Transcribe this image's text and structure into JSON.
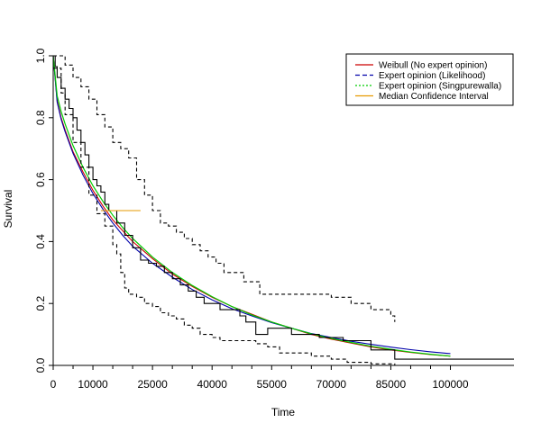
{
  "chart_data": {
    "type": "line",
    "title": "",
    "xlabel": "Time",
    "ylabel": "Survival",
    "xlim": [
      0,
      116000
    ],
    "ylim": [
      0,
      1.0
    ],
    "x_ticks": [
      0,
      10000,
      25000,
      40000,
      55000,
      70000,
      85000,
      100000
    ],
    "x_tick_labels": [
      "0",
      "10000",
      "25000",
      "40000",
      "55000",
      "70000",
      "85000",
      "100000"
    ],
    "x_minor_ticks": [
      5000,
      15000,
      20000,
      30000,
      35000,
      45000,
      50000,
      60000,
      65000,
      75000,
      80000,
      90000,
      95000
    ],
    "y_ticks": [
      0.0,
      0.2,
      0.4,
      0.6,
      0.8,
      1.0
    ],
    "y_tick_labels": [
      "0.0",
      "0.2",
      "0.4",
      "0.6",
      "0.8",
      "1.0"
    ],
    "grid": false,
    "legend_position": "top-right",
    "legend": [
      {
        "label": "Weibull (No expert opinion)",
        "color": "#CC0000",
        "dash": "solid"
      },
      {
        "label": "Expert opinion (Likelihood)",
        "color": "#0000AA",
        "dash": "dashed"
      },
      {
        "label": "Expert opinion (Singpurewalla)",
        "color": "#00CC00",
        "dash": "dotted"
      },
      {
        "label": "Median Confidence Interval",
        "color": "#E69A00",
        "dash": "solid"
      }
    ],
    "series": [
      {
        "name": "Weibull (No expert opinion)",
        "color": "#CC0000",
        "x": [
          0,
          1000,
          2000,
          3000,
          5000,
          7500,
          10000,
          12500,
          15000,
          17500,
          20000,
          25000,
          30000,
          35000,
          40000,
          45000,
          50000,
          55000,
          60000,
          65000,
          70000,
          75000,
          80000,
          85000,
          90000,
          95000,
          100000
        ],
        "y": [
          1.0,
          0.855,
          0.8,
          0.76,
          0.69,
          0.625,
          0.565,
          0.515,
          0.47,
          0.435,
          0.4,
          0.345,
          0.295,
          0.255,
          0.22,
          0.19,
          0.165,
          0.14,
          0.12,
          0.1,
          0.085,
          0.072,
          0.06,
          0.05,
          0.042,
          0.035,
          0.03
        ]
      },
      {
        "name": "Expert opinion (Likelihood)",
        "color": "#0000AA",
        "x": [
          0,
          1000,
          2000,
          3000,
          5000,
          7500,
          10000,
          12500,
          15000,
          17500,
          20000,
          25000,
          30000,
          35000,
          40000,
          45000,
          50000,
          55000,
          60000,
          65000,
          70000,
          75000,
          80000,
          85000,
          90000,
          95000,
          100000
        ],
        "y": [
          1.0,
          0.85,
          0.795,
          0.755,
          0.685,
          0.615,
          0.555,
          0.505,
          0.46,
          0.42,
          0.385,
          0.33,
          0.285,
          0.245,
          0.212,
          0.183,
          0.16,
          0.138,
          0.12,
          0.103,
          0.09,
          0.078,
          0.068,
          0.059,
          0.051,
          0.044,
          0.038
        ]
      },
      {
        "name": "Expert opinion (Singpurewalla)",
        "color": "#00CC00",
        "x": [
          0,
          1000,
          2000,
          3000,
          5000,
          7500,
          10000,
          12500,
          15000,
          17500,
          20000,
          25000,
          30000,
          35000,
          40000,
          45000,
          50000,
          55000,
          60000,
          65000,
          70000,
          75000,
          80000,
          85000,
          90000,
          95000,
          100000
        ],
        "y": [
          1.0,
          0.87,
          0.82,
          0.78,
          0.71,
          0.64,
          0.58,
          0.53,
          0.485,
          0.445,
          0.41,
          0.35,
          0.3,
          0.258,
          0.222,
          0.19,
          0.163,
          0.14,
          0.12,
          0.102,
          0.087,
          0.074,
          0.062,
          0.052,
          0.043,
          0.036,
          0.03
        ]
      },
      {
        "name": "Kaplan-Meier estimate",
        "color": "#000000",
        "x": [
          0,
          500,
          1000,
          2000,
          3000,
          4000,
          5000,
          6000,
          7000,
          8000,
          9000,
          10000,
          11000,
          12000,
          13000,
          14000,
          16000,
          18000,
          20000,
          22000,
          24000,
          26000,
          28000,
          30000,
          32000,
          34000,
          36000,
          38000,
          42000,
          47000,
          48500,
          51000,
          54000,
          60000,
          67000,
          73000,
          80000,
          86000,
          116000
        ],
        "y": [
          1.0,
          0.965,
          0.93,
          0.895,
          0.86,
          0.83,
          0.8,
          0.76,
          0.72,
          0.68,
          0.64,
          0.6,
          0.58,
          0.56,
          0.52,
          0.5,
          0.46,
          0.42,
          0.38,
          0.34,
          0.33,
          0.32,
          0.3,
          0.28,
          0.26,
          0.24,
          0.22,
          0.2,
          0.18,
          0.16,
          0.14,
          0.1,
          0.12,
          0.1,
          0.09,
          0.08,
          0.05,
          0.02,
          0.02
        ]
      },
      {
        "name": "KM upper confidence limit",
        "color": "#000000",
        "x": [
          0,
          3000,
          5000,
          7000,
          9000,
          11000,
          13000,
          15000,
          17000,
          19000,
          21000,
          23000,
          25000,
          27000,
          29000,
          31000,
          33000,
          35000,
          37000,
          39000,
          41000,
          43000,
          45000,
          48000,
          52000,
          59000,
          70000,
          75000,
          80000,
          85000,
          86000
        ],
        "y": [
          1.0,
          0.97,
          0.93,
          0.9,
          0.86,
          0.81,
          0.77,
          0.72,
          0.7,
          0.67,
          0.6,
          0.55,
          0.5,
          0.46,
          0.45,
          0.43,
          0.41,
          0.39,
          0.37,
          0.35,
          0.33,
          0.3,
          0.3,
          0.27,
          0.23,
          0.23,
          0.22,
          0.2,
          0.18,
          0.16,
          0.14
        ]
      },
      {
        "name": "KM lower confidence limit",
        "color": "#000000",
        "x": [
          0,
          2000,
          3000,
          5000,
          7000,
          9000,
          11000,
          13000,
          15000,
          16000,
          17000,
          18000,
          19000,
          21000,
          23000,
          25000,
          27000,
          29000,
          31000,
          33000,
          35000,
          37000,
          40000,
          42000,
          46000,
          51000,
          54000,
          57000,
          65000,
          70000,
          74000,
          80000,
          86000
        ],
        "y": [
          0.96,
          0.88,
          0.81,
          0.72,
          0.64,
          0.55,
          0.49,
          0.45,
          0.39,
          0.36,
          0.3,
          0.25,
          0.23,
          0.22,
          0.2,
          0.19,
          0.17,
          0.16,
          0.15,
          0.13,
          0.12,
          0.1,
          0.09,
          0.08,
          0.08,
          0.07,
          0.06,
          0.04,
          0.03,
          0.02,
          0.01,
          0.005,
          0.0
        ]
      },
      {
        "name": "Median Confidence Interval",
        "color": "#E69A00",
        "x": [
          12000,
          22000
        ],
        "y": [
          0.5,
          0.5
        ]
      }
    ]
  }
}
